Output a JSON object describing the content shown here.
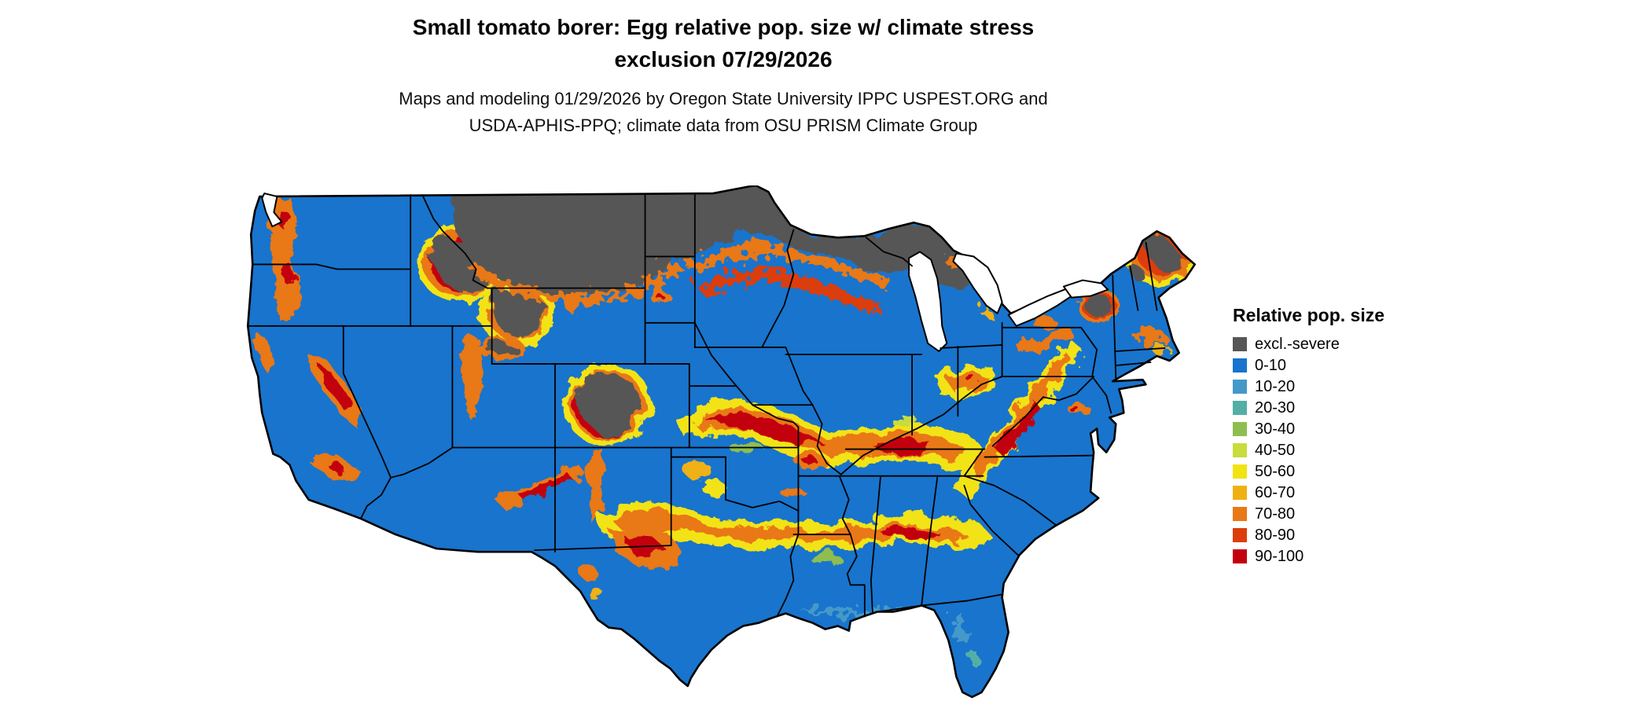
{
  "title": {
    "line1": "Small tomato borer: Egg relative pop. size w/ climate stress",
    "line2": "exclusion 07/29/2026"
  },
  "subtitle": {
    "line1": "Maps and modeling 01/29/2026 by Oregon State University IPPC USPEST.ORG and",
    "line2": "USDA-APHIS-PPQ; climate data from OSU PRISM Climate Group"
  },
  "map": {
    "region": "Contiguous United States",
    "kind": "raster risk map",
    "base_class_label": "0-10",
    "exclusion_class_label": "excl.-severe"
  },
  "legend": {
    "title": "Relative pop. size",
    "items": [
      {
        "label": "excl.-severe",
        "color": "#575757"
      },
      {
        "label": "0-10",
        "color": "#1874CD"
      },
      {
        "label": "10-20",
        "color": "#4499C8"
      },
      {
        "label": "20-30",
        "color": "#52AFA6"
      },
      {
        "label": "30-40",
        "color": "#8FBE50"
      },
      {
        "label": "40-50",
        "color": "#C8DC3C"
      },
      {
        "label": "50-60",
        "color": "#F2E313"
      },
      {
        "label": "60-70",
        "color": "#EFB112"
      },
      {
        "label": "70-80",
        "color": "#E97817"
      },
      {
        "label": "80-90",
        "color": "#DC3D0C"
      },
      {
        "label": "90-100",
        "color": "#C30010"
      }
    ]
  }
}
